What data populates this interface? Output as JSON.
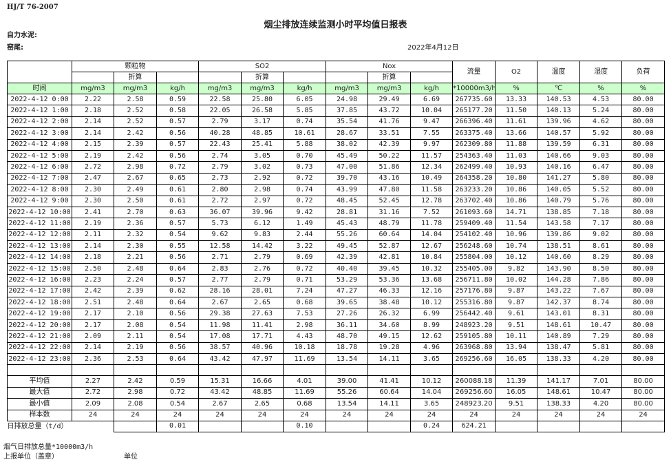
{
  "header": {
    "standard": "HJ/T  76-2007",
    "title": "烟尘排放连续监测小时平均值日报表",
    "company": "自力水泥:",
    "kiln": "窑尾:",
    "date": "2022年4月12日"
  },
  "table": {
    "groups": [
      "颗粒物",
      "SO2",
      "Nox"
    ],
    "converted_label": "折算",
    "single_columns": [
      "流量",
      "O2",
      "温度",
      "湿度",
      "负荷"
    ],
    "units": [
      "时间",
      "mg/m3",
      "mg/m3",
      "kg/h",
      "mg/m3",
      "mg/m3",
      "kg/h",
      "mg/m3",
      "mg/m3",
      "kg/h",
      "*10000m3/h",
      "%",
      "℃",
      "%",
      "%"
    ],
    "rows": [
      [
        "2022-4-12 0:00",
        "2.22",
        "2.58",
        "0.59",
        "22.58",
        "25.80",
        "6.05",
        "24.98",
        "29.49",
        "6.69",
        "267735.60",
        "13.33",
        "140.53",
        "4.53",
        "80.00"
      ],
      [
        "2022-4-12 1:00",
        "2.18",
        "2.52",
        "0.58",
        "22.05",
        "26.58",
        "5.85",
        "37.85",
        "43.72",
        "10.04",
        "265177.20",
        "11.50",
        "140.13",
        "5.24",
        "80.00"
      ],
      [
        "2022-4-12 2:00",
        "2.14",
        "2.52",
        "0.57",
        "2.79",
        "3.17",
        "0.74",
        "35.54",
        "41.76",
        "9.47",
        "266396.40",
        "11.61",
        "139.96",
        "4.62",
        "80.00"
      ],
      [
        "2022-4-12 3:00",
        "2.14",
        "2.42",
        "0.56",
        "40.28",
        "48.85",
        "10.61",
        "28.67",
        "33.51",
        "7.55",
        "263375.40",
        "13.66",
        "140.57",
        "5.92",
        "80.00"
      ],
      [
        "2022-4-12 4:00",
        "2.15",
        "2.39",
        "0.57",
        "22.43",
        "25.41",
        "5.88",
        "38.02",
        "42.39",
        "9.97",
        "262309.80",
        "11.88",
        "139.59",
        "6.31",
        "80.00"
      ],
      [
        "2022-4-12 5:00",
        "2.19",
        "2.42",
        "0.56",
        "2.74",
        "3.05",
        "0.70",
        "45.49",
        "50.22",
        "11.57",
        "254363.40",
        "11.03",
        "140.66",
        "9.03",
        "80.00"
      ],
      [
        "2022-4-12 6:00",
        "2.72",
        "2.98",
        "0.72",
        "2.79",
        "3.02",
        "0.73",
        "47.00",
        "51.86",
        "12.34",
        "262499.40",
        "10.93",
        "140.16",
        "6.47",
        "80.00"
      ],
      [
        "2022-4-12 7:00",
        "2.47",
        "2.67",
        "0.65",
        "2.73",
        "2.92",
        "0.72",
        "39.70",
        "43.16",
        "10.49",
        "264358.20",
        "10.80",
        "141.27",
        "5.80",
        "80.00"
      ],
      [
        "2022-4-12 8:00",
        "2.30",
        "2.49",
        "0.61",
        "2.80",
        "2.98",
        "0.74",
        "43.99",
        "47.80",
        "11.58",
        "263233.20",
        "10.86",
        "140.05",
        "5.52",
        "80.00"
      ],
      [
        "2022-4-12 9:00",
        "2.30",
        "2.50",
        "0.61",
        "2.72",
        "2.97",
        "0.72",
        "48.45",
        "52.45",
        "12.78",
        "263702.40",
        "10.86",
        "140.79",
        "5.76",
        "80.00"
      ],
      [
        "2022-4-12 10:00",
        "2.41",
        "2.70",
        "0.63",
        "36.07",
        "39.96",
        "9.42",
        "28.81",
        "31.16",
        "7.52",
        "261093.60",
        "14.71",
        "138.85",
        "7.18",
        "80.00"
      ],
      [
        "2022-4-12 11:00",
        "2.19",
        "2.36",
        "0.57",
        "5.73",
        "6.12",
        "1.49",
        "45.43",
        "48.79",
        "11.78",
        "259409.40",
        "11.54",
        "143.58",
        "7.17",
        "80.00"
      ],
      [
        "2022-4-12 12:00",
        "2.11",
        "2.32",
        "0.54",
        "9.62",
        "9.83",
        "2.44",
        "55.26",
        "60.64",
        "14.04",
        "254102.40",
        "10.96",
        "139.86",
        "9.02",
        "80.00"
      ],
      [
        "2022-4-12 13:00",
        "2.14",
        "2.30",
        "0.55",
        "12.58",
        "14.42",
        "3.22",
        "49.45",
        "52.87",
        "12.67",
        "256248.60",
        "10.74",
        "138.51",
        "8.61",
        "80.00"
      ],
      [
        "2022-4-12 14:00",
        "2.18",
        "2.21",
        "0.56",
        "2.71",
        "2.79",
        "0.69",
        "42.39",
        "42.81",
        "10.84",
        "255804.00",
        "10.12",
        "140.60",
        "8.29",
        "80.00"
      ],
      [
        "2022-4-12 15:00",
        "2.50",
        "2.48",
        "0.64",
        "2.83",
        "2.76",
        "0.72",
        "40.40",
        "39.45",
        "10.32",
        "255405.00",
        "9.82",
        "143.90",
        "8.50",
        "80.00"
      ],
      [
        "2022-4-12 16:00",
        "2.23",
        "2.24",
        "0.57",
        "2.77",
        "2.79",
        "0.71",
        "53.29",
        "53.36",
        "13.68",
        "256711.80",
        "10.02",
        "144.28",
        "7.86",
        "80.00"
      ],
      [
        "2022-4-12 17:00",
        "2.42",
        "2.39",
        "0.62",
        "28.16",
        "28.01",
        "7.24",
        "47.27",
        "46.33",
        "12.16",
        "257176.80",
        "9.87",
        "143.22",
        "7.67",
        "80.00"
      ],
      [
        "2022-4-12 18:00",
        "2.51",
        "2.48",
        "0.64",
        "2.67",
        "2.65",
        "0.68",
        "39.65",
        "38.48",
        "10.12",
        "255316.80",
        "9.87",
        "142.37",
        "8.74",
        "80.00"
      ],
      [
        "2022-4-12 19:00",
        "2.17",
        "2.10",
        "0.56",
        "29.38",
        "27.63",
        "7.53",
        "27.26",
        "26.32",
        "6.99",
        "256442.40",
        "9.61",
        "143.01",
        "8.31",
        "80.00"
      ],
      [
        "2022-4-12 20:00",
        "2.17",
        "2.08",
        "0.54",
        "11.98",
        "11.41",
        "2.98",
        "36.11",
        "34.60",
        "8.99",
        "248923.20",
        "9.51",
        "148.61",
        "10.47",
        "80.00"
      ],
      [
        "2022-4-12 21:00",
        "2.09",
        "2.11",
        "0.54",
        "17.08",
        "17.71",
        "4.43",
        "48.70",
        "49.15",
        "12.62",
        "259105.80",
        "10.11",
        "140.89",
        "7.29",
        "80.00"
      ],
      [
        "2022-4-12 22:00",
        "2.14",
        "2.19",
        "0.56",
        "38.57",
        "40.96",
        "10.18",
        "18.78",
        "19.28",
        "4.96",
        "263968.80",
        "13.94",
        "138.47",
        "5.81",
        "80.00"
      ],
      [
        "2022-4-12 23:00",
        "2.36",
        "2.53",
        "0.64",
        "43.42",
        "47.97",
        "11.69",
        "13.54",
        "14.11",
        "3.65",
        "269256.60",
        "16.05",
        "138.33",
        "4.20",
        "80.00"
      ]
    ],
    "summary": [
      [
        "平均值",
        "2.27",
        "2.42",
        "0.59",
        "15.31",
        "16.66",
        "4.01",
        "39.00",
        "41.41",
        "10.12",
        "260088.18",
        "11.39",
        "141.17",
        "7.01",
        "80.00"
      ],
      [
        "最大值",
        "2.72",
        "2.98",
        "0.72",
        "43.42",
        "48.85",
        "11.69",
        "55.26",
        "60.64",
        "14.04",
        "269256.60",
        "16.05",
        "148.61",
        "10.47",
        "80.00"
      ],
      [
        "最小值",
        "2.09",
        "2.08",
        "0.54",
        "2.67",
        "2.65",
        "0.68",
        "13.54",
        "14.11",
        "3.65",
        "248923.20",
        "9.51",
        "138.33",
        "4.20",
        "80.00"
      ],
      [
        "样本数",
        "24",
        "24",
        "24",
        "24",
        "24",
        "24",
        "24",
        "24",
        "24",
        "24",
        "24",
        "24",
        "24",
        "24"
      ]
    ],
    "daily_total": {
      "label": "日排放总量（t/d）",
      "values": [
        "",
        "0.01",
        "",
        "",
        "0.10",
        "",
        "",
        "0.24",
        "624.21",
        "",
        "",
        "",
        ""
      ]
    }
  },
  "footer": {
    "flue_gas_total": "烟气日排放总量*10000m3/h",
    "reporting_unit": "上报单位（盖章）",
    "unit": "单位"
  },
  "colors": {
    "unit_row_bg": "#ccffcc"
  }
}
